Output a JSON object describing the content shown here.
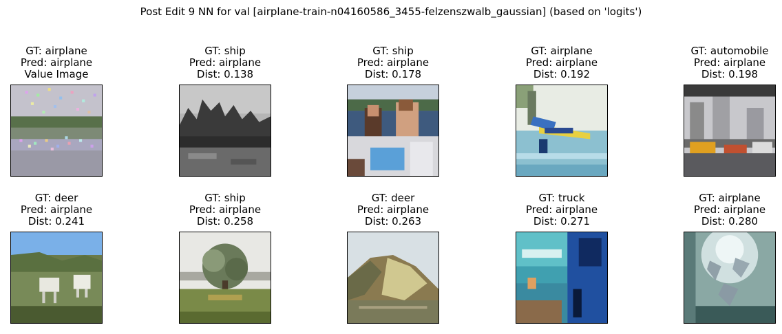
{
  "title": "Post Edit 9 NN for val [airplane-train-n04160586_3455-felzenszwalb_gaussian] (based on 'logits')",
  "panels": [
    {
      "gt": "GT: airplane",
      "pred": "Pred: airplane",
      "extra": "Value Image",
      "image": "noisy-lake-airplane-image"
    },
    {
      "gt": "GT: ship",
      "pred": "Pred: airplane",
      "extra": "Dist: 0.138",
      "image": "grayscale-trees-lake-image"
    },
    {
      "gt": "GT: ship",
      "pred": "Pred: airplane",
      "extra": "Dist: 0.178",
      "image": "people-on-boat-image"
    },
    {
      "gt": "GT: airplane",
      "pred": "Pred: airplane",
      "extra": "Dist: 0.192",
      "image": "seaplane-on-water-image"
    },
    {
      "gt": "GT: automobile",
      "pred": "Pred: airplane",
      "extra": "Dist: 0.198",
      "image": "street-cars-buildings-image"
    },
    {
      "gt": "GT: deer",
      "pred": "Pred: airplane",
      "extra": "Dist: 0.241",
      "image": "deer-in-field-image"
    },
    {
      "gt": "GT: ship",
      "pred": "Pred: airplane",
      "extra": "Dist: 0.258",
      "image": "tree-in-meadow-image"
    },
    {
      "gt": "GT: deer",
      "pred": "Pred: airplane",
      "extra": "Dist: 0.263",
      "image": "hillside-landscape-image"
    },
    {
      "gt": "GT: truck",
      "pred": "Pred: airplane",
      "extra": "Dist: 0.271",
      "image": "truck-closeup-image"
    },
    {
      "gt": "GT: airplane",
      "pred": "Pred: airplane",
      "extra": "Dist: 0.280",
      "image": "jet-formation-image"
    }
  ]
}
